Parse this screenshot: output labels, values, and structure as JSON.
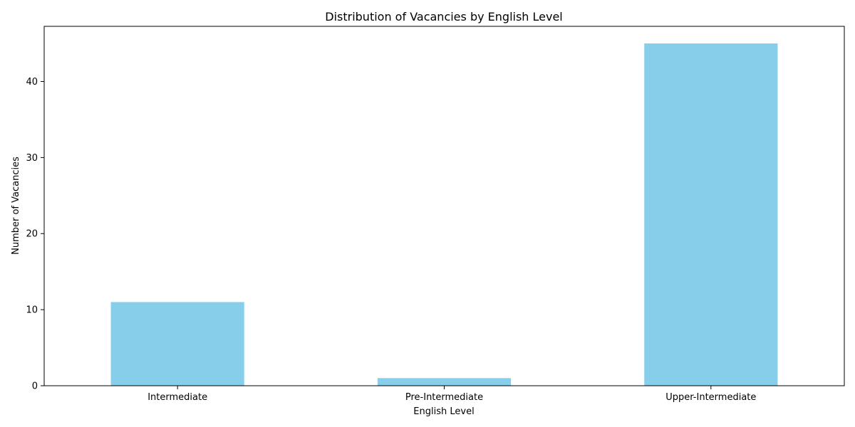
{
  "chart_data": {
    "type": "bar",
    "title": "Distribution of Vacancies by English Level",
    "xlabel": "English Level",
    "ylabel": "Number of Vacancies",
    "categories": [
      "Intermediate",
      "Pre-Intermediate",
      "Upper-Intermediate"
    ],
    "values": [
      11,
      1,
      45
    ],
    "ylim": [
      0,
      47.25
    ],
    "yticks": [
      0,
      10,
      20,
      30,
      40
    ],
    "grid": false,
    "legend": "none",
    "colors": {
      "bar": "#87CEEB",
      "axis": "#000000",
      "text": "#000000",
      "background": "#ffffff"
    }
  }
}
